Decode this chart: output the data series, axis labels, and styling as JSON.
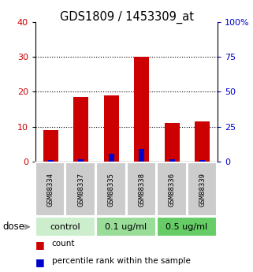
{
  "title": "GDS1809 / 1453309_at",
  "samples": [
    "GSM88334",
    "GSM88337",
    "GSM88335",
    "GSM88338",
    "GSM88336",
    "GSM88339"
  ],
  "count_values": [
    9,
    18.5,
    19,
    30,
    11,
    11.5
  ],
  "percentile_values": [
    1,
    2,
    6,
    9,
    2,
    1
  ],
  "ylim_left": [
    0,
    40
  ],
  "ylim_right": [
    0,
    100
  ],
  "yticks_left": [
    0,
    10,
    20,
    30,
    40
  ],
  "ytick_labels_left": [
    "0",
    "10",
    "20",
    "30",
    "40"
  ],
  "yticks_right": [
    0,
    25,
    50,
    75,
    100
  ],
  "ytick_labels_right": [
    "0",
    "25",
    "50",
    "75",
    "100%"
  ],
  "groups": [
    {
      "label": "control",
      "indices": [
        0,
        1
      ],
      "color": "#cceecc"
    },
    {
      "label": "0.1 ug/ml",
      "indices": [
        2,
        3
      ],
      "color": "#99dd99"
    },
    {
      "label": "0.5 ug/ml",
      "indices": [
        4,
        5
      ],
      "color": "#66cc66"
    }
  ],
  "bar_color_count": "#cc0000",
  "bar_color_percentile": "#0000cc",
  "sample_label_bg": "#cccccc",
  "dose_label": "dose",
  "legend_count": "count",
  "legend_percentile": "percentile rank within the sample",
  "left_color": "#cc0000",
  "right_color": "#0000cc"
}
